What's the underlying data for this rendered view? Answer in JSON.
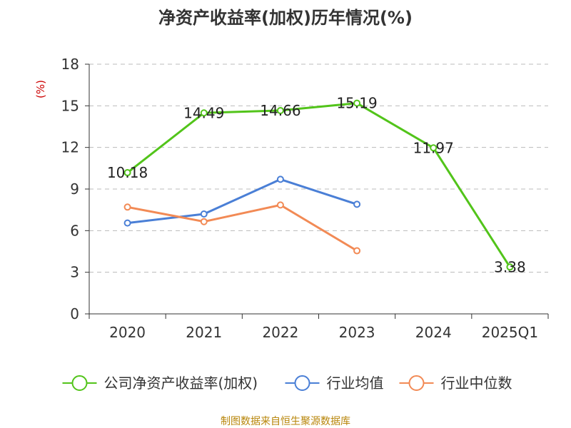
{
  "title": "净资产收益率(加权)历年情况(%)",
  "unit_label": "(%)",
  "source": "制图数据来自恒生聚源数据库",
  "colors": {
    "company": "#52c41a",
    "industry_avg": "#4a7fd6",
    "industry_median": "#f28a55",
    "grid": "#bbbbbb",
    "axis": "#333333"
  },
  "chart_data": {
    "type": "line",
    "title": "净资产收益率(加权)历年情况(%)",
    "ylabel": "(%)",
    "xlabel": "",
    "categories": [
      "2020",
      "2021",
      "2022",
      "2023",
      "2024",
      "2025Q1"
    ],
    "ylim": [
      0,
      18
    ],
    "yticks": [
      0,
      3,
      6,
      9,
      12,
      15,
      18
    ],
    "grid": true,
    "legend_position": "bottom",
    "series": [
      {
        "name": "公司净资产收益率(加权)",
        "values": [
          10.18,
          14.49,
          14.66,
          15.19,
          11.97,
          3.38
        ],
        "labels": [
          "10.18",
          "14.49",
          "14.66",
          "15.19",
          "11.97",
          "3.38"
        ],
        "color": "#52c41a"
      },
      {
        "name": "行业均值",
        "values": [
          6.55,
          7.2,
          9.7,
          7.9,
          null,
          null
        ],
        "color": "#4a7fd6"
      },
      {
        "name": "行业中位数",
        "values": [
          7.7,
          6.65,
          7.85,
          4.55,
          null,
          null
        ],
        "color": "#f28a55"
      }
    ]
  }
}
